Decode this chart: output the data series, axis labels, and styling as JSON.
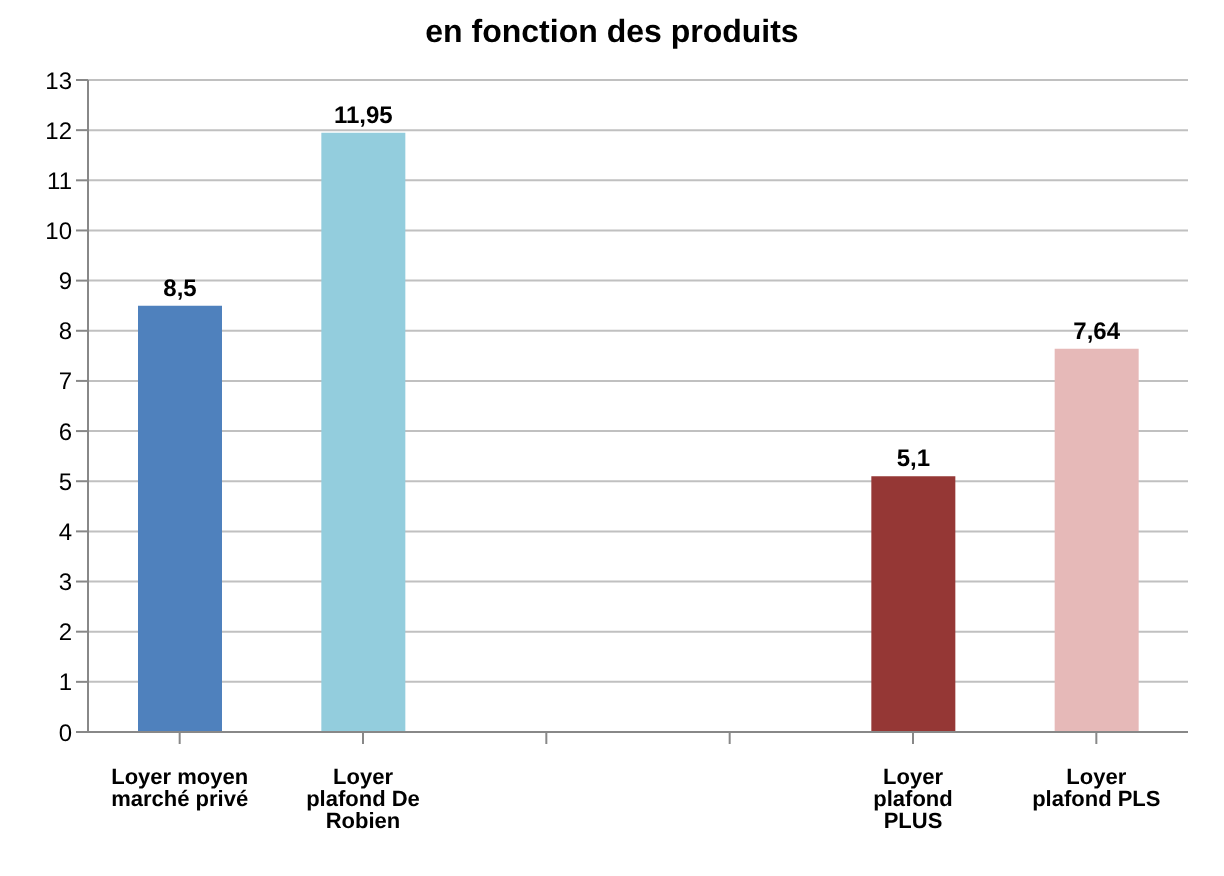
{
  "chart_data": {
    "type": "bar",
    "title": "en fonction des produits",
    "categories": [
      "Loyer moyen marché privé",
      "Loyer plafond De Robien",
      null,
      null,
      "Loyer plafond PLUS",
      "Loyer plafond PLS"
    ],
    "values": [
      8.5,
      11.95,
      null,
      null,
      5.1,
      7.64
    ],
    "value_labels": [
      "8,5",
      "11,95",
      null,
      null,
      "5,1",
      "7,64"
    ],
    "colors": [
      "#4f81bd",
      "#93cddd",
      "#4f81bd",
      "#4f81bd",
      "#953735",
      "#e6b9b8"
    ],
    "ylim": [
      0,
      13
    ],
    "yticks": [
      0,
      1,
      2,
      3,
      4,
      5,
      6,
      7,
      8,
      9,
      10,
      11,
      12,
      13
    ],
    "grid": "y"
  }
}
